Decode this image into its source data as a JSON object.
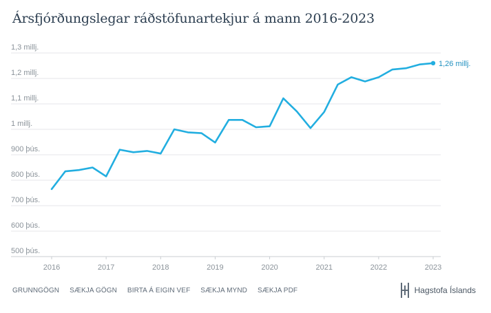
{
  "title": "Ársfjórðungslegar ráðstöfunartekjur á mann 2016-2023",
  "chart_data": {
    "type": "line",
    "title": "Ársfjórðungslegar ráðstöfunartekjur á mann 2016-2023",
    "xlabel": "",
    "ylabel": "",
    "xlim": [
      2016,
      2023
    ],
    "ylim": [
      500000,
      1300000
    ],
    "grid": true,
    "y_ticks": [
      {
        "value": 500000,
        "label": "500 þús."
      },
      {
        "value": 600000,
        "label": "600 þús."
      },
      {
        "value": 700000,
        "label": "700 þús."
      },
      {
        "value": 800000,
        "label": "800 þús."
      },
      {
        "value": 900000,
        "label": "900 þús."
      },
      {
        "value": 1000000,
        "label": "1 millj."
      },
      {
        "value": 1100000,
        "label": "1,1 millj."
      },
      {
        "value": 1200000,
        "label": "1,2 millj."
      },
      {
        "value": 1300000,
        "label": "1,3 millj."
      }
    ],
    "x_ticks": [
      "2016",
      "2017",
      "2018",
      "2019",
      "2020",
      "2021",
      "2022",
      "2023"
    ],
    "series": [
      {
        "color": "#22aee0",
        "x": [
          2016,
          2016.25,
          2016.5,
          2016.75,
          2017,
          2017.25,
          2017.5,
          2017.75,
          2018,
          2018.25,
          2018.5,
          2018.75,
          2019,
          2019.25,
          2019.5,
          2019.75,
          2020,
          2020.25,
          2020.5,
          2020.75,
          2021,
          2021.25,
          2021.5,
          2021.75,
          2022,
          2022.25,
          2022.5,
          2022.75,
          2023
        ],
        "values": [
          765000,
          835000,
          840000,
          850000,
          815000,
          920000,
          910000,
          915000,
          905000,
          1000000,
          988000,
          985000,
          948000,
          1037000,
          1037000,
          1008000,
          1012000,
          1122000,
          1070000,
          1005000,
          1068000,
          1176000,
          1205000,
          1188000,
          1205000,
          1235000,
          1240000,
          1255000,
          1260000
        ]
      }
    ],
    "end_label": "1,26 millj."
  },
  "footer": {
    "links": [
      "GRUNNGÖGN",
      "SÆKJA GÖGN",
      "BIRTA Á EIGIN VEF",
      "SÆKJA MYND",
      "SÆKJA PDF"
    ]
  },
  "brand": {
    "name": "Hagstofa Íslands",
    "icon": "hagstofa-logo-icon"
  },
  "colors": {
    "line": "#22aee0",
    "grid": "#e4e6e8",
    "tick_text": "#8a9299",
    "title": "#2c3e50",
    "label": "#1f8fbf"
  }
}
